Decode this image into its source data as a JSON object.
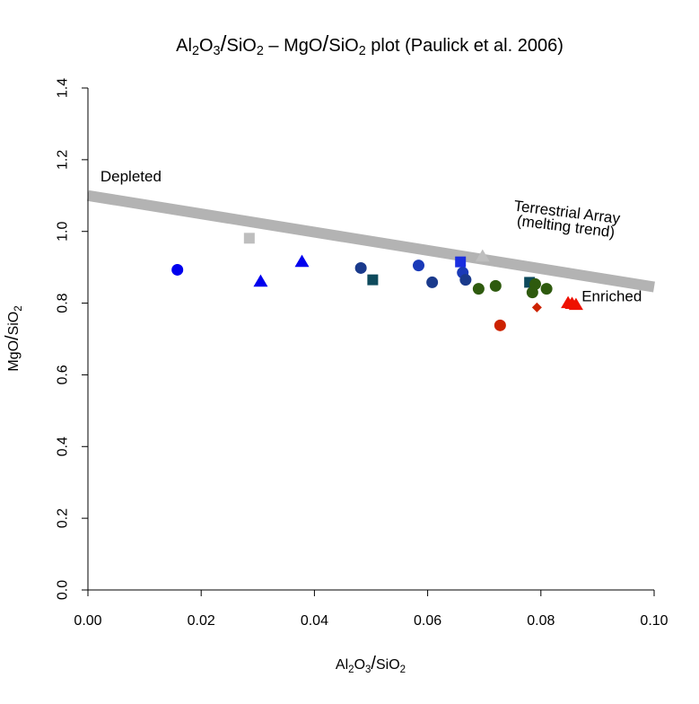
{
  "chart_data": {
    "type": "scatter",
    "title": {
      "parts": [
        {
          "t": "Al"
        },
        {
          "t": "2",
          "sub": true
        },
        {
          "t": "O"
        },
        {
          "t": "3",
          "sub": true
        },
        {
          "t": "/",
          "slash": true
        },
        {
          "t": "SiO"
        },
        {
          "t": "2",
          "sub": true
        },
        {
          "t": " –  MgO"
        },
        {
          "t": "/",
          "slash": true
        },
        {
          "t": "SiO"
        },
        {
          "t": "2",
          "sub": true
        },
        {
          "t": " plot (Paulick et al. 2006)"
        }
      ]
    },
    "xlabel": {
      "parts": [
        {
          "t": "Al"
        },
        {
          "t": "2",
          "sub": true
        },
        {
          "t": "O"
        },
        {
          "t": "3",
          "sub": true
        },
        {
          "t": "/",
          "slash": true
        },
        {
          "t": "SiO"
        },
        {
          "t": "2",
          "sub": true
        }
      ]
    },
    "ylabel": {
      "parts": [
        {
          "t": "MgO"
        },
        {
          "t": "/",
          "slash": true
        },
        {
          "t": "SiO"
        },
        {
          "t": "2",
          "sub": true
        }
      ]
    },
    "xlim": [
      0,
      0.1
    ],
    "ylim": [
      0,
      1.4
    ],
    "xticks": [
      0.0,
      0.02,
      0.04,
      0.06,
      0.08,
      0.1
    ],
    "xtick_labels": [
      "0.00",
      "0.02",
      "0.04",
      "0.06",
      "0.08",
      "0.10"
    ],
    "yticks": [
      0.0,
      0.2,
      0.4,
      0.6,
      0.8,
      1.0,
      1.2,
      1.4
    ],
    "ytick_labels": [
      "0.0",
      "0.2",
      "0.4",
      "0.6",
      "0.8",
      "1.0",
      "1.2",
      "1.4"
    ],
    "trend_line": {
      "x": [
        0,
        0.1
      ],
      "y": [
        1.1,
        0.845
      ],
      "color": "#b3b3b3"
    },
    "annotations": [
      {
        "text": "Depleted",
        "x": 0.0022,
        "y": 1.14,
        "anchor": "start",
        "rotate": 0
      },
      {
        "text": "Enriched",
        "x": 0.0872,
        "y": 0.805,
        "anchor": "start",
        "rotate": 0
      },
      {
        "text": "Terrestrial Array",
        "x": 0.0845,
        "y": 1.04,
        "anchor": "middle",
        "rotate": 7
      },
      {
        "text": "(melting trend)",
        "x": 0.0843,
        "y": 1.0,
        "anchor": "middle",
        "rotate": 7
      }
    ],
    "points": [
      {
        "x": 0.0158,
        "y": 0.893,
        "shape": "circle",
        "color": "#0000ee"
      },
      {
        "x": 0.0305,
        "y": 0.86,
        "shape": "triangle",
        "color": "#0000ee"
      },
      {
        "x": 0.0378,
        "y": 0.915,
        "shape": "triangle",
        "color": "#0000ee"
      },
      {
        "x": 0.0285,
        "y": 0.981,
        "shape": "square",
        "color": "#bebebe"
      },
      {
        "x": 0.0482,
        "y": 0.898,
        "shape": "circle",
        "color": "#1a3a8c"
      },
      {
        "x": 0.0503,
        "y": 0.865,
        "shape": "square",
        "color": "#0e4a5c"
      },
      {
        "x": 0.0584,
        "y": 0.905,
        "shape": "circle",
        "color": "#1a3ab8"
      },
      {
        "x": 0.0608,
        "y": 0.858,
        "shape": "circle",
        "color": "#1a3a8c"
      },
      {
        "x": 0.0658,
        "y": 0.915,
        "shape": "square",
        "color": "#1a2ee0"
      },
      {
        "x": 0.0662,
        "y": 0.885,
        "shape": "circle",
        "color": "#1a3ab8"
      },
      {
        "x": 0.0667,
        "y": 0.865,
        "shape": "circle",
        "color": "#1a3a8c"
      },
      {
        "x": 0.0697,
        "y": 0.93,
        "shape": "triangle",
        "color": "#bebebe"
      },
      {
        "x": 0.069,
        "y": 0.84,
        "shape": "circle",
        "color": "#2e5a0e"
      },
      {
        "x": 0.072,
        "y": 0.848,
        "shape": "circle",
        "color": "#2e5a0e"
      },
      {
        "x": 0.078,
        "y": 0.858,
        "shape": "square",
        "color": "#0e4a5c"
      },
      {
        "x": 0.079,
        "y": 0.853,
        "shape": "circle",
        "color": "#2e5a0e"
      },
      {
        "x": 0.0785,
        "y": 0.83,
        "shape": "circle",
        "color": "#2e5a0e"
      },
      {
        "x": 0.081,
        "y": 0.84,
        "shape": "circle",
        "color": "#2e5a0e"
      },
      {
        "x": 0.0728,
        "y": 0.738,
        "shape": "circle",
        "color": "#cc2200"
      },
      {
        "x": 0.0793,
        "y": 0.788,
        "shape": "diamond",
        "color": "#cc2200"
      },
      {
        "x": 0.0848,
        "y": 0.8,
        "shape": "triangle",
        "color": "#ee1100"
      },
      {
        "x": 0.0855,
        "y": 0.798,
        "shape": "triangle",
        "color": "#ee1100"
      },
      {
        "x": 0.0862,
        "y": 0.795,
        "shape": "triangle",
        "color": "#ee1100"
      }
    ]
  }
}
